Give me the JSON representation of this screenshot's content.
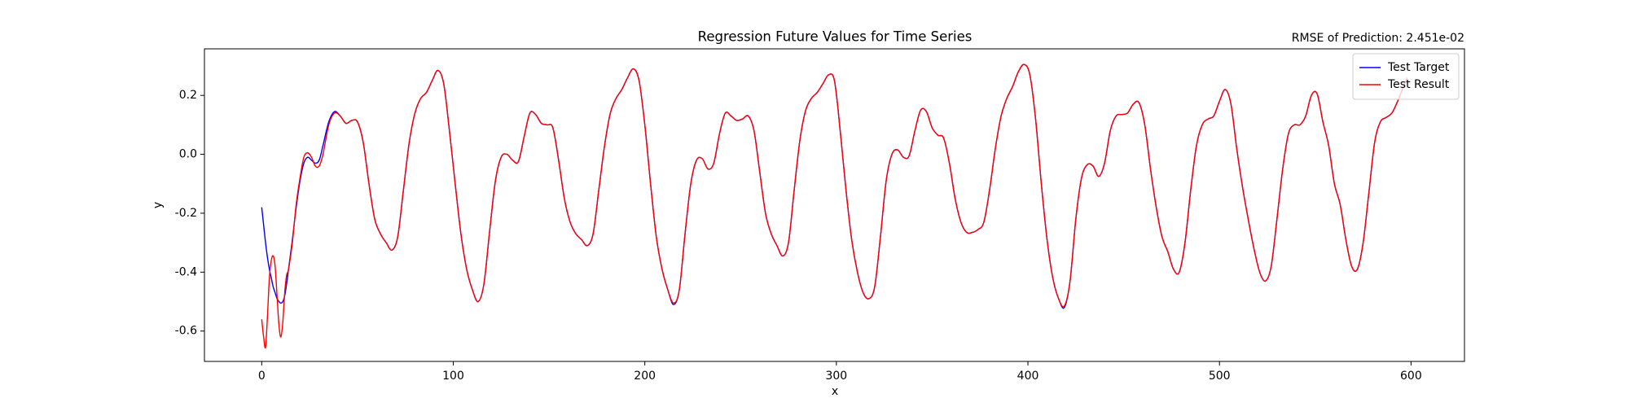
{
  "chart_data": {
    "type": "line",
    "title": "Regression Future Values for Time Series",
    "annotation": "RMSE of Prediction: 2.451e-02",
    "x_label": "x",
    "y_label": "y",
    "xlim": [
      -29.9,
      627.9
    ],
    "ylim": [
      -0.703,
      0.358
    ],
    "xticks": [
      0,
      100,
      200,
      300,
      400,
      500,
      600
    ],
    "yticks": [
      -0.6,
      -0.4,
      -0.2,
      {
        "value": 0,
        "label": "0.0"
      },
      0.2
    ],
    "grid": false,
    "legend": "upper right",
    "x": [
      0,
      1,
      2,
      3,
      4,
      5,
      6,
      7,
      8,
      9,
      10,
      11,
      12,
      13,
      14,
      16,
      18,
      20,
      22,
      24,
      26,
      28,
      30,
      32,
      35,
      38,
      41,
      44,
      47,
      50,
      53,
      56,
      59,
      62,
      65,
      68,
      71,
      74,
      77,
      80,
      83,
      86,
      89,
      92,
      95,
      98,
      101,
      104,
      107,
      110,
      113,
      116,
      119,
      122,
      125,
      128,
      131,
      134,
      137,
      140,
      143,
      146,
      149,
      152,
      155,
      158,
      161,
      164,
      167,
      170,
      173,
      176,
      179,
      182,
      185,
      188,
      191,
      194,
      197,
      200,
      203,
      206,
      209,
      212,
      215,
      218,
      221,
      224,
      227,
      230,
      233,
      236,
      239,
      242,
      245,
      248,
      251,
      254,
      257,
      260,
      263,
      266,
      269,
      272,
      275,
      278,
      281,
      284,
      287,
      290,
      293,
      296,
      299,
      302,
      305,
      308,
      311,
      314,
      317,
      320,
      323,
      326,
      329,
      332,
      335,
      338,
      341,
      344,
      347,
      350,
      353,
      356,
      359,
      362,
      365,
      368,
      371,
      374,
      377,
      380,
      383,
      386,
      389,
      392,
      395,
      398,
      401,
      404,
      407,
      410,
      413,
      416,
      419,
      422,
      425,
      428,
      431,
      434,
      437,
      440,
      443,
      446,
      449,
      452,
      455,
      458,
      461,
      464,
      467,
      470,
      473,
      476,
      479,
      482,
      485,
      488,
      491,
      494,
      497,
      500,
      503,
      506,
      509,
      512,
      515,
      518,
      521,
      524,
      527,
      530,
      533,
      536,
      539,
      542,
      545,
      548,
      551,
      554,
      557,
      560,
      563,
      566,
      569,
      572,
      575,
      578,
      581,
      584,
      587,
      590,
      593,
      596,
      598
    ],
    "series": [
      {
        "name": "Test Target",
        "color": "#0000ff",
        "values": [
          -0.18,
          -0.24,
          -0.3,
          -0.35,
          -0.39,
          -0.42,
          -0.45,
          -0.47,
          -0.49,
          -0.5,
          -0.505,
          -0.5,
          -0.48,
          -0.44,
          -0.39,
          -0.29,
          -0.18,
          -0.09,
          -0.03,
          -0.01,
          -0.02,
          -0.03,
          -0.02,
          0.03,
          0.11,
          0.145,
          0.13,
          0.105,
          0.115,
          0.11,
          0.04,
          -0.1,
          -0.22,
          -0.27,
          -0.3,
          -0.325,
          -0.28,
          -0.12,
          0.04,
          0.14,
          0.19,
          0.21,
          0.25,
          0.285,
          0.24,
          0.08,
          -0.1,
          -0.27,
          -0.39,
          -0.46,
          -0.5,
          -0.44,
          -0.26,
          -0.09,
          -0.01,
          0.0,
          -0.02,
          -0.025,
          0.06,
          0.14,
          0.135,
          0.105,
          0.1,
          0.09,
          -0.02,
          -0.15,
          -0.23,
          -0.27,
          -0.29,
          -0.31,
          -0.27,
          -0.12,
          0.03,
          0.14,
          0.19,
          0.22,
          0.26,
          0.29,
          0.25,
          0.1,
          -0.1,
          -0.28,
          -0.39,
          -0.46,
          -0.51,
          -0.46,
          -0.27,
          -0.1,
          -0.02,
          -0.015,
          -0.05,
          -0.03,
          0.07,
          0.14,
          0.13,
          0.115,
          0.12,
          0.13,
          0.08,
          -0.06,
          -0.2,
          -0.27,
          -0.31,
          -0.345,
          -0.3,
          -0.12,
          0.05,
          0.15,
          0.19,
          0.21,
          0.24,
          0.27,
          0.25,
          0.08,
          -0.12,
          -0.29,
          -0.4,
          -0.47,
          -0.49,
          -0.45,
          -0.28,
          -0.09,
          0.0,
          0.015,
          -0.01,
          -0.005,
          0.08,
          0.15,
          0.145,
          0.09,
          0.065,
          0.055,
          -0.03,
          -0.15,
          -0.23,
          -0.265,
          -0.265,
          -0.255,
          -0.23,
          -0.12,
          0.02,
          0.13,
          0.19,
          0.23,
          0.28,
          0.305,
          0.27,
          0.12,
          -0.1,
          -0.29,
          -0.42,
          -0.49,
          -0.52,
          -0.43,
          -0.22,
          -0.08,
          -0.035,
          -0.04,
          -0.075,
          -0.03,
          0.08,
          0.13,
          0.135,
          0.14,
          0.17,
          0.175,
          0.1,
          -0.05,
          -0.18,
          -0.28,
          -0.33,
          -0.39,
          -0.4,
          -0.3,
          -0.12,
          0.03,
          0.1,
          0.12,
          0.13,
          0.18,
          0.22,
          0.17,
          0.02,
          -0.11,
          -0.22,
          -0.32,
          -0.4,
          -0.43,
          -0.38,
          -0.22,
          -0.05,
          0.07,
          0.1,
          0.1,
          0.13,
          0.2,
          0.205,
          0.11,
          0.03,
          -0.1,
          -0.17,
          -0.29,
          -0.38,
          -0.39,
          -0.3,
          -0.13,
          0.04,
          0.11,
          0.125,
          0.14,
          0.18,
          0.23,
          0.26
        ]
      },
      {
        "name": "Test Result",
        "color": "#ff0000",
        "values": [
          -0.56,
          -0.62,
          -0.655,
          -0.55,
          -0.42,
          -0.36,
          -0.345,
          -0.38,
          -0.48,
          -0.58,
          -0.62,
          -0.57,
          -0.47,
          -0.41,
          -0.39,
          -0.3,
          -0.17,
          -0.08,
          -0.01,
          0.005,
          -0.01,
          -0.04,
          -0.04,
          0.0,
          0.1,
          0.14,
          0.13,
          0.105,
          0.115,
          0.11,
          0.04,
          -0.1,
          -0.22,
          -0.27,
          -0.3,
          -0.325,
          -0.28,
          -0.12,
          0.04,
          0.14,
          0.19,
          0.21,
          0.25,
          0.285,
          0.24,
          0.08,
          -0.1,
          -0.27,
          -0.39,
          -0.46,
          -0.5,
          -0.44,
          -0.26,
          -0.09,
          -0.01,
          0.0,
          -0.02,
          -0.025,
          0.06,
          0.14,
          0.135,
          0.105,
          0.1,
          0.09,
          -0.02,
          -0.15,
          -0.23,
          -0.27,
          -0.29,
          -0.31,
          -0.27,
          -0.12,
          0.03,
          0.14,
          0.19,
          0.22,
          0.26,
          0.29,
          0.25,
          0.1,
          -0.1,
          -0.28,
          -0.39,
          -0.46,
          -0.505,
          -0.46,
          -0.27,
          -0.1,
          -0.02,
          -0.015,
          -0.05,
          -0.03,
          0.07,
          0.14,
          0.13,
          0.115,
          0.12,
          0.13,
          0.08,
          -0.06,
          -0.2,
          -0.27,
          -0.31,
          -0.345,
          -0.3,
          -0.12,
          0.05,
          0.15,
          0.19,
          0.21,
          0.24,
          0.27,
          0.25,
          0.08,
          -0.12,
          -0.29,
          -0.4,
          -0.47,
          -0.49,
          -0.45,
          -0.28,
          -0.09,
          0.0,
          0.015,
          -0.01,
          -0.005,
          0.08,
          0.15,
          0.145,
          0.09,
          0.065,
          0.055,
          -0.03,
          -0.15,
          -0.23,
          -0.265,
          -0.265,
          -0.255,
          -0.23,
          -0.12,
          0.02,
          0.13,
          0.19,
          0.23,
          0.28,
          0.305,
          0.27,
          0.12,
          -0.1,
          -0.29,
          -0.42,
          -0.49,
          -0.515,
          -0.43,
          -0.22,
          -0.08,
          -0.035,
          -0.04,
          -0.075,
          -0.03,
          0.08,
          0.13,
          0.135,
          0.14,
          0.17,
          0.175,
          0.1,
          -0.05,
          -0.18,
          -0.28,
          -0.33,
          -0.39,
          -0.4,
          -0.3,
          -0.12,
          0.03,
          0.1,
          0.12,
          0.13,
          0.18,
          0.22,
          0.17,
          0.02,
          -0.11,
          -0.22,
          -0.32,
          -0.4,
          -0.43,
          -0.38,
          -0.22,
          -0.05,
          0.07,
          0.1,
          0.1,
          0.13,
          0.2,
          0.205,
          0.11,
          0.03,
          -0.1,
          -0.17,
          -0.29,
          -0.38,
          -0.39,
          -0.3,
          -0.13,
          0.04,
          0.11,
          0.125,
          0.14,
          0.18,
          0.23,
          0.26
        ]
      }
    ]
  }
}
